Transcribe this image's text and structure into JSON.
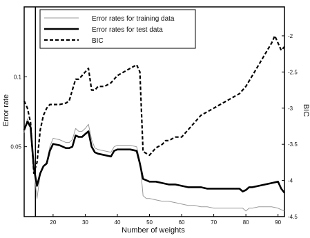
{
  "chart_data": {
    "type": "line",
    "xlabel": "Number of weights",
    "ylabel_left": "Error rate",
    "ylabel_right": "BIC",
    "xlim": [
      11,
      92
    ],
    "ylim_left": [
      0,
      0.15
    ],
    "ylim_right": [
      -4.5,
      -1.6
    ],
    "x_ticks": [
      20,
      30,
      40,
      50,
      60,
      70,
      80,
      90
    ],
    "y_ticks_left": [
      0.05,
      0.1
    ],
    "y_ticks_left_labels": [
      "0.05",
      "0.1"
    ],
    "y_ticks_right": [
      -2,
      -2.5,
      -3,
      -3.5,
      -4,
      -4.5
    ],
    "y_ticks_right_labels": [
      "-2",
      "-2.5",
      "-3",
      "-3.5",
      "-4",
      "-4.5"
    ],
    "vertical_marker_x": 14.5,
    "legend_position": "top",
    "grid": false,
    "series": [
      {
        "name": "Error rates for training data",
        "axis": "left",
        "style": "thin-gray",
        "color": "#9a9a9a",
        "x": [
          11,
          12,
          13,
          14,
          15,
          16,
          17,
          18,
          19,
          20,
          22,
          24,
          25,
          26,
          27,
          28,
          29,
          30,
          31,
          32,
          33,
          34,
          36,
          38,
          39,
          40,
          42,
          44,
          46,
          47,
          48,
          49,
          50,
          52,
          54,
          56,
          58,
          60,
          62,
          64,
          66,
          68,
          70,
          72,
          74,
          76,
          78,
          79,
          80,
          81,
          82,
          84,
          86,
          88,
          90,
          91,
          92
        ],
        "y": [
          0.06,
          0.07,
          0.065,
          0.035,
          0.013,
          0.03,
          0.036,
          0.039,
          0.05,
          0.056,
          0.055,
          0.053,
          0.053,
          0.055,
          0.063,
          0.061,
          0.061,
          0.063,
          0.066,
          0.055,
          0.049,
          0.048,
          0.047,
          0.046,
          0.05,
          0.051,
          0.051,
          0.051,
          0.05,
          0.04,
          0.015,
          0.013,
          0.013,
          0.012,
          0.011,
          0.011,
          0.01,
          0.009,
          0.008,
          0.008,
          0.007,
          0.007,
          0.006,
          0.006,
          0.006,
          0.006,
          0.006,
          0.006,
          0.004,
          0.006,
          0.006,
          0.007,
          0.007,
          0.007,
          0.006,
          0.005,
          0.004
        ]
      },
      {
        "name": "Error rates for test data",
        "axis": "left",
        "style": "thick-solid",
        "color": "#000000",
        "x": [
          11,
          12,
          13,
          14,
          15,
          16,
          17,
          18,
          19,
          20,
          22,
          24,
          25,
          26,
          27,
          28,
          29,
          30,
          31,
          32,
          33,
          34,
          36,
          38,
          39,
          40,
          42,
          44,
          46,
          47,
          48,
          50,
          52,
          54,
          56,
          58,
          60,
          62,
          64,
          66,
          68,
          70,
          72,
          74,
          76,
          78,
          79,
          80,
          81,
          82,
          84,
          86,
          88,
          90,
          91,
          92
        ],
        "y": [
          0.062,
          0.068,
          0.064,
          0.035,
          0.022,
          0.031,
          0.036,
          0.038,
          0.047,
          0.052,
          0.051,
          0.049,
          0.049,
          0.05,
          0.058,
          0.057,
          0.057,
          0.059,
          0.061,
          0.05,
          0.046,
          0.045,
          0.044,
          0.043,
          0.047,
          0.048,
          0.048,
          0.048,
          0.047,
          0.038,
          0.027,
          0.025,
          0.025,
          0.024,
          0.023,
          0.023,
          0.022,
          0.021,
          0.021,
          0.021,
          0.02,
          0.02,
          0.02,
          0.02,
          0.02,
          0.02,
          0.018,
          0.019,
          0.021,
          0.021,
          0.022,
          0.023,
          0.024,
          0.025,
          0.02,
          0.017
        ]
      },
      {
        "name": "BIC",
        "axis": "right",
        "style": "thick-dashed",
        "color": "#000000",
        "x": [
          11,
          12,
          13,
          14,
          15,
          16,
          17,
          18,
          19,
          20,
          22,
          24,
          25,
          26,
          27,
          28,
          29,
          30,
          31,
          32,
          33,
          34,
          36,
          38,
          39,
          40,
          42,
          44,
          46,
          47,
          48,
          50,
          52,
          54,
          55,
          56,
          58,
          60,
          62,
          64,
          66,
          68,
          70,
          72,
          74,
          76,
          78,
          80,
          82,
          84,
          86,
          88,
          89,
          90,
          91,
          92
        ],
        "y": [
          -2.9,
          -3.0,
          -3.2,
          -3.9,
          -3.75,
          -3.3,
          -3.1,
          -3.0,
          -2.95,
          -2.95,
          -2.95,
          -2.93,
          -2.9,
          -2.75,
          -2.6,
          -2.6,
          -2.55,
          -2.5,
          -2.45,
          -2.75,
          -2.75,
          -2.7,
          -2.7,
          -2.65,
          -2.6,
          -2.55,
          -2.5,
          -2.45,
          -2.4,
          -2.5,
          -3.6,
          -3.65,
          -3.55,
          -3.5,
          -3.45,
          -3.45,
          -3.4,
          -3.4,
          -3.3,
          -3.2,
          -3.1,
          -3.05,
          -3.0,
          -2.95,
          -2.9,
          -2.85,
          -2.8,
          -2.7,
          -2.55,
          -2.4,
          -2.25,
          -2.1,
          -2.0,
          -2.1,
          -2.2,
          -2.15
        ]
      }
    ]
  }
}
